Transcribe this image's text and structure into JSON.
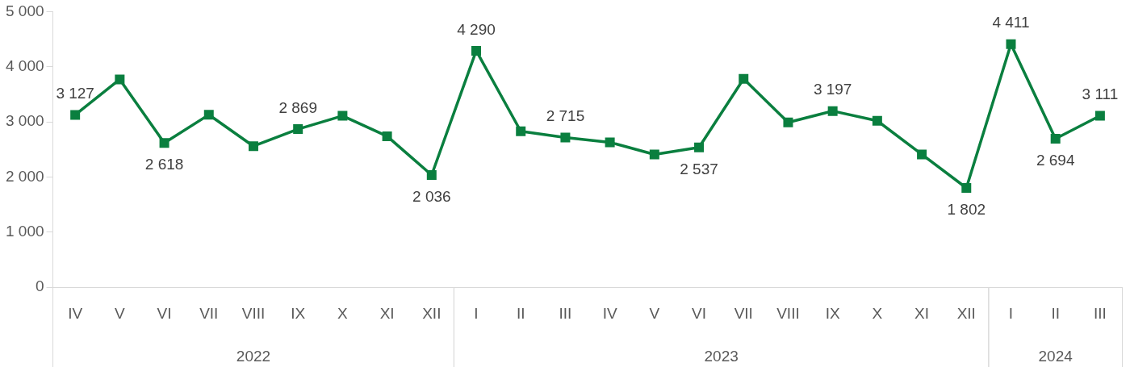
{
  "chart_data": {
    "type": "line",
    "categories": [
      "IV",
      "V",
      "VI",
      "VII",
      "VIII",
      "IX",
      "X",
      "XI",
      "XII",
      "I",
      "II",
      "III",
      "IV",
      "V",
      "VI",
      "VII",
      "VIII",
      "IX",
      "X",
      "XI",
      "XII",
      "I",
      "II",
      "III"
    ],
    "annotations": [
      "2022",
      "2023",
      "2024"
    ],
    "series": [
      {
        "color": "#0a7f3f",
        "values": [
          3127,
          3770,
          2618,
          3130,
          2560,
          2869,
          3110,
          2740,
          2036,
          4290,
          2830,
          2715,
          2630,
          2410,
          2537,
          3780,
          2990,
          3197,
          3020,
          2410,
          1802,
          4411,
          2694,
          3111
        ],
        "value_labels": [
          "3 127",
          null,
          "2 618",
          null,
          null,
          "2 869",
          null,
          null,
          "2 036",
          "4 290",
          null,
          "2 715",
          null,
          null,
          "2 537",
          null,
          null,
          "3 197",
          null,
          null,
          "1 802",
          "4 411",
          "2 694",
          "3 111"
        ]
      }
    ],
    "ylim": [
      0,
      5000
    ],
    "yticks": [
      {
        "value": 0,
        "label": "0"
      },
      {
        "value": 1000,
        "label": "1 000"
      },
      {
        "value": 2000,
        "label": "2 000"
      },
      {
        "value": 3000,
        "label": "3 000"
      },
      {
        "value": 4000,
        "label": "4 000"
      },
      {
        "value": 5000,
        "label": "5 000"
      }
    ],
    "grid": false,
    "legend": false,
    "marker": "square",
    "line_style": "solid"
  }
}
